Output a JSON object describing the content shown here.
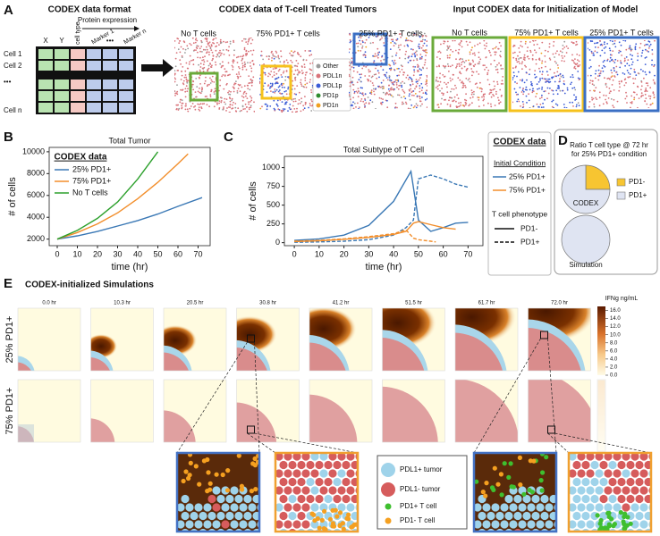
{
  "panel_labels": [
    "A",
    "B",
    "C",
    "D",
    "E"
  ],
  "panel_a": {
    "format_title": "CODEX data format",
    "columns": [
      "X",
      "Y",
      "cell type",
      "Marker 1",
      "•••",
      "Marker n"
    ],
    "protein_label": "Protein expression",
    "rows": [
      "Cell 1",
      "Cell 2",
      "•••",
      "Cell n"
    ],
    "treated_title": "CODEX data of T-cell Treated Tumors",
    "treated_images": [
      "No T cells",
      "75% PD1+ T cells",
      "25% PD1+ T cells"
    ],
    "legend": [
      {
        "name": "Other",
        "color": "#9a9a9a"
      },
      {
        "name": "PDL1n",
        "color": "#d9737a"
      },
      {
        "name": "PDL1p",
        "color": "#3b5bd6"
      },
      {
        "name": "PD1p",
        "color": "#2e8b2e"
      },
      {
        "name": "PD1n",
        "color": "#f0a020"
      }
    ],
    "input_title": "Input CODEX data for Initialization of Model",
    "input_images": [
      "No T cells",
      "75% PD1+ T cells",
      "25% PD1+ T cells"
    ]
  },
  "chart_data": [
    {
      "type": "line",
      "title": "Total Tumor",
      "xlabel": "time (hr)",
      "ylabel": "# of cells",
      "legend_title": "CODEX data",
      "xlim": [
        -4,
        76
      ],
      "ylim": [
        1400,
        10400
      ],
      "xticks": [
        0,
        10,
        20,
        30,
        40,
        50,
        60,
        70
      ],
      "yticks": [
        2000,
        4000,
        6000,
        8000,
        10000
      ],
      "series": [
        {
          "name": "25% PD1+",
          "color": "#3a78b5",
          "x": [
            0,
            10,
            20,
            30,
            40,
            50,
            60,
            72
          ],
          "values": [
            2000,
            2300,
            2700,
            3200,
            3700,
            4300,
            5000,
            5800
          ]
        },
        {
          "name": "75% PD1+",
          "color": "#f28e2b",
          "x": [
            0,
            10,
            20,
            30,
            40,
            50,
            60,
            65
          ],
          "values": [
            2000,
            2600,
            3400,
            4400,
            5700,
            7200,
            8900,
            9800
          ]
        },
        {
          "name": "No T cells",
          "color": "#2ca02c",
          "x": [
            0,
            10,
            20,
            30,
            40,
            50
          ],
          "values": [
            2000,
            2800,
            3900,
            5400,
            7500,
            10000
          ]
        }
      ]
    },
    {
      "type": "line",
      "title": "Total Subtype of T Cell",
      "xlabel": "time (hr)",
      "ylabel": "# of cells",
      "legend_title": "CODEX data",
      "condition_title": "Initial Condition",
      "phenotype_title": "T cell phenotype",
      "conditions": [
        {
          "name": "25% PD1+",
          "color": "#3a78b5"
        },
        {
          "name": "75% PD1+",
          "color": "#f28e2b"
        }
      ],
      "phenotypes": [
        {
          "name": "PD1-",
          "dash": "solid"
        },
        {
          "name": "PD1+",
          "dash": "dashed"
        }
      ],
      "xlim": [
        -4,
        76
      ],
      "ylim": [
        -40,
        1150
      ],
      "xticks": [
        0,
        10,
        20,
        30,
        40,
        50,
        60,
        70
      ],
      "yticks": [
        0,
        250,
        500,
        750,
        1000
      ],
      "series": [
        {
          "condition": "25% PD1+",
          "phenotype": "PD1-",
          "x": [
            0,
            10,
            20,
            30,
            40,
            47,
            50,
            55,
            60,
            65,
            70
          ],
          "values": [
            30,
            50,
            100,
            230,
            550,
            950,
            300,
            150,
            200,
            260,
            270
          ]
        },
        {
          "condition": "25% PD1+",
          "phenotype": "PD1+",
          "x": [
            0,
            10,
            20,
            30,
            40,
            45,
            48,
            50,
            55,
            60,
            65,
            70
          ],
          "values": [
            5,
            10,
            20,
            40,
            100,
            200,
            300,
            850,
            900,
            850,
            780,
            740
          ]
        },
        {
          "condition": "75% PD1+",
          "phenotype": "PD1-",
          "x": [
            0,
            10,
            20,
            30,
            40,
            45,
            48,
            50,
            55,
            60,
            65
          ],
          "values": [
            15,
            25,
            45,
            70,
            110,
            150,
            260,
            280,
            240,
            200,
            180
          ]
        },
        {
          "condition": "75% PD1+",
          "phenotype": "PD1+",
          "x": [
            0,
            10,
            20,
            30,
            40,
            45,
            48,
            50,
            55,
            57
          ],
          "values": [
            20,
            30,
            50,
            80,
            120,
            170,
            60,
            40,
            20,
            10
          ]
        }
      ]
    },
    {
      "type": "pie",
      "title": "Ratio T cell type @ 72 hr",
      "subtitle": "for 25% PD1+ condition",
      "categories": [
        "PD1-",
        "PD1+"
      ],
      "colors": [
        "#f7c531",
        "#dfe4f2"
      ],
      "pies": [
        {
          "name": "CODEX",
          "values": [
            25,
            75
          ]
        },
        {
          "name": "Simulation",
          "values": [
            0,
            100
          ]
        }
      ]
    }
  ],
  "panel_e": {
    "title": "CODEX-initialized Simulations",
    "times": [
      "0.0 hr",
      "10.3 hr",
      "20.5 hr",
      "30.8 hr",
      "41.2 hr",
      "51.5 hr",
      "61.7 hr",
      "72.0 hr"
    ],
    "rows": [
      "25% PD1+",
      "75% PD1+"
    ],
    "colorbar": {
      "label": "IFNg ng/mL",
      "lim": [
        0,
        17
      ],
      "ticks": [
        {
          "value": 0,
          "label": "0.0"
        },
        {
          "value": 2,
          "label": "2.0"
        },
        {
          "value": 4,
          "label": "4.0"
        },
        {
          "value": 6,
          "label": "6.0"
        },
        {
          "value": 8,
          "label": "8.0"
        },
        {
          "value": 10,
          "label": "10.0"
        },
        {
          "value": 12,
          "label": "12.0"
        },
        {
          "value": 14,
          "label": "14.0"
        },
        {
          "value": 16,
          "label": "16.0"
        }
      ]
    },
    "legend": [
      {
        "name": "PDL1+ tumor",
        "color": "#9fd3ea"
      },
      {
        "name": "PDL1- tumor",
        "color": "#d65c5c"
      },
      {
        "name": "PD1+ T cell",
        "color": "#3fbf2f"
      },
      {
        "name": "PD1- T cell",
        "color": "#f5a020"
      }
    ]
  }
}
